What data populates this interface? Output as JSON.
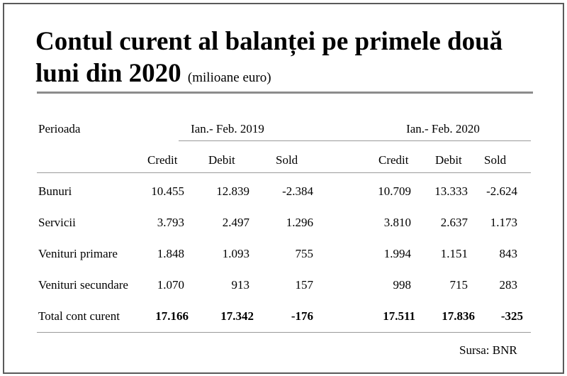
{
  "title": {
    "text": "Contul curent al balanței pe primele două luni din 2020",
    "unit": "(milioane euro)"
  },
  "table": {
    "period_label": "Perioada",
    "periods": [
      "Ian.- Feb. 2019",
      "Ian.- Feb. 2020"
    ],
    "columns": [
      "Credit",
      "Debit",
      "Sold",
      "Credit",
      "Debit",
      "Sold"
    ],
    "rows": [
      {
        "label": "Bunuri",
        "values": [
          "10.455",
          "12.839",
          "-2.384",
          "10.709",
          "13.333",
          "-2.624"
        ],
        "bold": false
      },
      {
        "label": "Servicii",
        "values": [
          "3.793",
          "2.497",
          "1.296",
          "3.810",
          "2.637",
          "1.173"
        ],
        "bold": false
      },
      {
        "label": "Venituri primare",
        "values": [
          "1.848",
          "1.093",
          "755",
          "1.994",
          "1.151",
          "843"
        ],
        "bold": false
      },
      {
        "label": "Venituri secundare",
        "values": [
          "1.070",
          "913",
          "157",
          "998",
          "715",
          "283"
        ],
        "bold": false
      },
      {
        "label": "Total cont curent",
        "values": [
          "17.166",
          "17.342",
          "-176",
          "17.511",
          "17.836",
          "-325"
        ],
        "bold": true
      }
    ]
  },
  "source": "Sursa: BNR"
}
